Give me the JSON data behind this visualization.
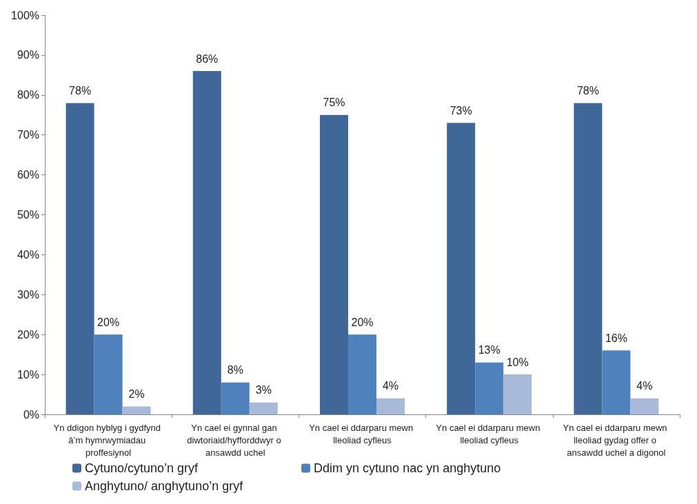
{
  "chart_data": {
    "type": "bar",
    "categories": [
      "Yn ddigon hyblyg i gydfynd â’m hymrwymiadau proffesiynol",
      "Yn cael ei gynnal gan diwtoriaid/hyfforddwyr o ansawdd uchel",
      "Yn cael ei ddarparu mewn lleoliad cyfleus",
      "Yn cael ei ddarparu mewn lleoliad cyfleus",
      "Yn cael ei ddarparu mewn lleoliad gydag offer o ansawdd uchel a digonol"
    ],
    "series": [
      {
        "name": "Cytuno/cytuno’n gryf",
        "color": "#3f6899",
        "values": [
          78,
          86,
          75,
          73,
          78
        ],
        "value_labels": [
          "78%",
          "86%",
          "75%",
          "73%",
          "78%"
        ]
      },
      {
        "name": "Ddim yn cytuno nac yn anghytuno",
        "color": "#4f81bd",
        "values": [
          20,
          8,
          20,
          13,
          16
        ],
        "value_labels": [
          "20%",
          "8%",
          "20%",
          "13%",
          "16%"
        ]
      },
      {
        "name": "Anghytuno/ anghytuno’n gryf",
        "color": "#a9b9d9",
        "values": [
          2,
          3,
          4,
          10,
          4
        ],
        "value_labels": [
          "2%",
          "3%",
          "4%",
          "10%",
          "4%"
        ]
      }
    ],
    "ylim": [
      0,
      100
    ],
    "yticks": [
      {
        "value": 0,
        "label": "0%"
      },
      {
        "value": 10,
        "label": "10%"
      },
      {
        "value": 20,
        "label": "20%"
      },
      {
        "value": 30,
        "label": "30%"
      },
      {
        "value": 40,
        "label": "40%"
      },
      {
        "value": 50,
        "label": "50%"
      },
      {
        "value": 60,
        "label": "60%"
      },
      {
        "value": 70,
        "label": "70%"
      },
      {
        "value": 80,
        "label": "80%"
      },
      {
        "value": 90,
        "label": "90%"
      },
      {
        "value": 100,
        "label": "100%"
      }
    ],
    "grid": false,
    "legend": "bottom"
  }
}
